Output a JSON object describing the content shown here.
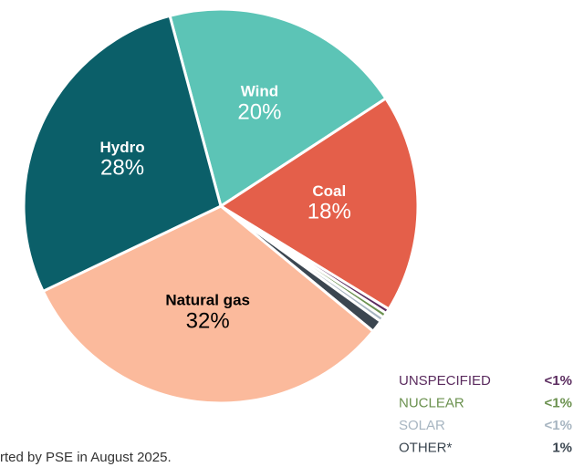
{
  "chart_data": {
    "type": "pie",
    "categories": [
      "Wind",
      "Coal",
      "UNSPECIFIED",
      "NUCLEAR",
      "SOLAR",
      "OTHER*",
      "Natural gas",
      "Hydro"
    ],
    "values": [
      20,
      18,
      0.4,
      0.4,
      0.4,
      1,
      32,
      28
    ],
    "value_labels": [
      "20%",
      "18%",
      "<1%",
      "<1%",
      "<1%",
      "1%",
      "32%",
      "28%"
    ],
    "colors": [
      "#5cc4b6",
      "#e45f4a",
      "#5b2c5f",
      "#6b914f",
      "#a7b5c1",
      "#3b4650",
      "#fbba9c",
      "#0b5f69"
    ],
    "footnote": "rted by PSE in August 2025."
  }
}
